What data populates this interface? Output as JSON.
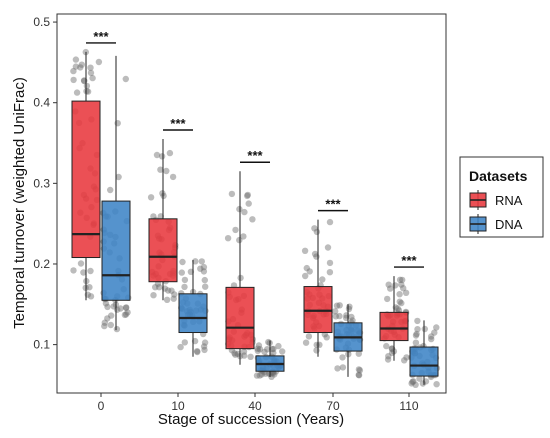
{
  "chart_data": {
    "type": "box",
    "title": "",
    "xlabel": "Stage of succession (Years)",
    "ylabel": "Temporal turnover (weighted UniFrac)",
    "ylim": [
      0.04,
      0.51
    ],
    "yticks": [
      0.1,
      0.2,
      0.3,
      0.4,
      0.5
    ],
    "ytick_labels": [
      "0.1",
      "0.2",
      "0.3",
      "0.4",
      "0.5"
    ],
    "categories": [
      "0",
      "10",
      "40",
      "70",
      "110"
    ],
    "grid": false,
    "legend": {
      "title": "Datasets",
      "position": "right",
      "entries": [
        "RNA",
        "DNA"
      ]
    },
    "series": [
      {
        "name": "RNA",
        "color": "#e8383d",
        "boxes": [
          {
            "min": 0.155,
            "q1": 0.208,
            "median": 0.237,
            "q3": 0.402,
            "max": 0.463
          },
          {
            "min": 0.155,
            "q1": 0.178,
            "median": 0.209,
            "q3": 0.256,
            "max": 0.355
          },
          {
            "min": 0.075,
            "q1": 0.095,
            "median": 0.121,
            "q3": 0.171,
            "max": 0.315
          },
          {
            "min": 0.085,
            "q1": 0.115,
            "median": 0.142,
            "q3": 0.172,
            "max": 0.255
          },
          {
            "min": 0.08,
            "q1": 0.105,
            "median": 0.12,
            "q3": 0.14,
            "max": 0.185
          }
        ]
      },
      {
        "name": "DNA",
        "color": "#3d84c6",
        "boxes": [
          {
            "min": 0.118,
            "q1": 0.155,
            "median": 0.186,
            "q3": 0.278,
            "max": 0.458
          },
          {
            "min": 0.085,
            "q1": 0.115,
            "median": 0.133,
            "q3": 0.163,
            "max": 0.205
          },
          {
            "min": 0.06,
            "q1": 0.067,
            "median": 0.076,
            "q3": 0.086,
            "max": 0.105
          },
          {
            "min": 0.06,
            "q1": 0.092,
            "median": 0.109,
            "q3": 0.127,
            "max": 0.15
          },
          {
            "min": 0.05,
            "q1": 0.061,
            "median": 0.074,
            "q3": 0.097,
            "max": 0.13
          }
        ]
      }
    ],
    "significance": [
      "***",
      "***",
      "***",
      "***",
      "***"
    ]
  }
}
